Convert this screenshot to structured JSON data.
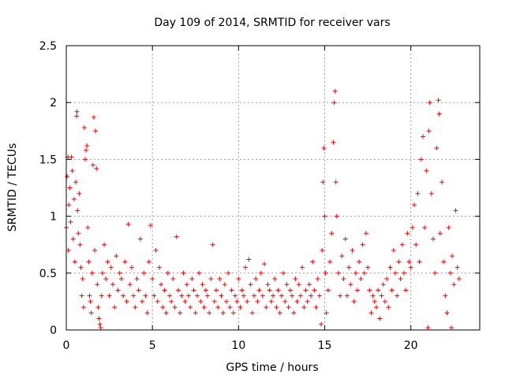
{
  "chart_data": {
    "type": "scatter",
    "title": "Day 109 of 2014, SRMTID for receiver vars",
    "xlabel": "GPS time / hours",
    "ylabel": "SRMTID / TECUs",
    "xlim": [
      0,
      24
    ],
    "ylim": [
      0,
      2.5
    ],
    "xticks": [
      0,
      5,
      10,
      15,
      20
    ],
    "xtick_labels": [
      "0",
      "5",
      "10",
      "15",
      "20"
    ],
    "yticks": [
      0,
      0.5,
      1,
      1.5,
      2,
      2.5
    ],
    "ytick_labels": [
      "0",
      "0.5",
      "1",
      "1.5",
      "2",
      "2.5"
    ],
    "grid": true,
    "marker": "+",
    "series": [
      {
        "name": "SRMTID",
        "color": "#ff0000",
        "points": [
          [
            0.0,
            0.9
          ],
          [
            0.05,
            1.35
          ],
          [
            0.1,
            1.52
          ],
          [
            0.12,
            0.7
          ],
          [
            0.15,
            1.1
          ],
          [
            0.2,
            1.25
          ],
          [
            0.25,
            0.95
          ],
          [
            0.3,
            1.52
          ],
          [
            0.35,
            1.4
          ],
          [
            0.4,
            0.8
          ],
          [
            0.45,
            1.15
          ],
          [
            0.5,
            0.6
          ],
          [
            0.55,
            1.3
          ],
          [
            0.6,
            1.88
          ],
          [
            0.62,
            1.92
          ],
          [
            0.65,
            1.05
          ],
          [
            0.7,
            0.85
          ],
          [
            0.75,
            1.2
          ],
          [
            0.8,
            0.75
          ],
          [
            0.85,
            0.55
          ],
          [
            0.9,
            0.3
          ],
          [
            0.95,
            0.45
          ],
          [
            1.0,
            0.2
          ],
          [
            1.05,
            1.78
          ],
          [
            1.1,
            1.5
          ],
          [
            1.15,
            1.58
          ],
          [
            1.2,
            1.62
          ],
          [
            1.25,
            0.9
          ],
          [
            1.3,
            0.6
          ],
          [
            1.35,
            0.3
          ],
          [
            1.4,
            0.25
          ],
          [
            1.45,
            0.15
          ],
          [
            1.5,
            0.5
          ],
          [
            1.55,
            1.45
          ],
          [
            1.6,
            1.87
          ],
          [
            1.65,
            0.7
          ],
          [
            1.7,
            1.75
          ],
          [
            1.75,
            1.42
          ],
          [
            1.8,
            0.4
          ],
          [
            1.85,
            0.2
          ],
          [
            1.9,
            0.1
          ],
          [
            1.95,
            0.05
          ],
          [
            2.0,
            0.02
          ],
          [
            2.05,
            0.3
          ],
          [
            2.1,
            0.5
          ],
          [
            2.2,
            0.75
          ],
          [
            2.3,
            0.45
          ],
          [
            2.4,
            0.6
          ],
          [
            2.5,
            0.3
          ],
          [
            2.6,
            0.55
          ],
          [
            2.7,
            0.4
          ],
          [
            2.8,
            0.2
          ],
          [
            2.9,
            0.65
          ],
          [
            3.0,
            0.35
          ],
          [
            3.1,
            0.5
          ],
          [
            3.2,
            0.45
          ],
          [
            3.3,
            0.3
          ],
          [
            3.4,
            0.6
          ],
          [
            3.5,
            0.25
          ],
          [
            3.6,
            0.93
          ],
          [
            3.7,
            0.4
          ],
          [
            3.8,
            0.55
          ],
          [
            3.9,
            0.3
          ],
          [
            4.0,
            0.2
          ],
          [
            4.1,
            0.45
          ],
          [
            4.2,
            0.35
          ],
          [
            4.3,
            0.8
          ],
          [
            4.4,
            0.25
          ],
          [
            4.5,
            0.5
          ],
          [
            4.6,
            0.3
          ],
          [
            4.7,
            0.15
          ],
          [
            4.8,
            0.6
          ],
          [
            4.9,
            0.92
          ],
          [
            5.0,
            0.45
          ],
          [
            5.1,
            0.3
          ],
          [
            5.2,
            0.7
          ],
          [
            5.3,
            0.25
          ],
          [
            5.4,
            0.55
          ],
          [
            5.5,
            0.4
          ],
          [
            5.6,
            0.2
          ],
          [
            5.7,
            0.35
          ],
          [
            5.8,
            0.15
          ],
          [
            5.9,
            0.5
          ],
          [
            6.0,
            0.3
          ],
          [
            6.1,
            0.25
          ],
          [
            6.2,
            0.45
          ],
          [
            6.3,
            0.2
          ],
          [
            6.4,
            0.82
          ],
          [
            6.5,
            0.35
          ],
          [
            6.6,
            0.15
          ],
          [
            6.7,
            0.3
          ],
          [
            6.8,
            0.5
          ],
          [
            6.9,
            0.25
          ],
          [
            7.0,
            0.4
          ],
          [
            7.1,
            0.3
          ],
          [
            7.2,
            0.2
          ],
          [
            7.3,
            0.45
          ],
          [
            7.4,
            0.35
          ],
          [
            7.5,
            0.15
          ],
          [
            7.6,
            0.3
          ],
          [
            7.7,
            0.5
          ],
          [
            7.8,
            0.25
          ],
          [
            7.9,
            0.4
          ],
          [
            8.0,
            0.2
          ],
          [
            8.1,
            0.35
          ],
          [
            8.2,
            0.3
          ],
          [
            8.3,
            0.15
          ],
          [
            8.4,
            0.45
          ],
          [
            8.5,
            0.75
          ],
          [
            8.6,
            0.25
          ],
          [
            8.7,
            0.35
          ],
          [
            8.8,
            0.2
          ],
          [
            8.9,
            0.45
          ],
          [
            9.0,
            0.3
          ],
          [
            9.1,
            0.15
          ],
          [
            9.2,
            0.4
          ],
          [
            9.3,
            0.25
          ],
          [
            9.4,
            0.5
          ],
          [
            9.5,
            0.2
          ],
          [
            9.6,
            0.35
          ],
          [
            9.7,
            0.15
          ],
          [
            9.8,
            0.3
          ],
          [
            9.9,
            0.25
          ],
          [
            10.0,
            0.45
          ],
          [
            10.1,
            0.2
          ],
          [
            10.2,
            0.35
          ],
          [
            10.3,
            0.3
          ],
          [
            10.4,
            0.55
          ],
          [
            10.5,
            0.25
          ],
          [
            10.6,
            0.62
          ],
          [
            10.7,
            0.4
          ],
          [
            10.8,
            0.15
          ],
          [
            10.9,
            0.3
          ],
          [
            11.0,
            0.45
          ],
          [
            11.1,
            0.25
          ],
          [
            11.2,
            0.35
          ],
          [
            11.3,
            0.5
          ],
          [
            11.4,
            0.3
          ],
          [
            11.5,
            0.58
          ],
          [
            11.6,
            0.2
          ],
          [
            11.7,
            0.4
          ],
          [
            11.8,
            0.35
          ],
          [
            11.9,
            0.25
          ],
          [
            12.0,
            0.3
          ],
          [
            12.1,
            0.45
          ],
          [
            12.2,
            0.2
          ],
          [
            12.3,
            0.35
          ],
          [
            12.4,
            0.15
          ],
          [
            12.5,
            0.3
          ],
          [
            12.6,
            0.5
          ],
          [
            12.7,
            0.25
          ],
          [
            12.8,
            0.4
          ],
          [
            12.9,
            0.2
          ],
          [
            13.0,
            0.35
          ],
          [
            13.1,
            0.3
          ],
          [
            13.2,
            0.15
          ],
          [
            13.3,
            0.45
          ],
          [
            13.4,
            0.25
          ],
          [
            13.5,
            0.4
          ],
          [
            13.6,
            0.3
          ],
          [
            13.7,
            0.55
          ],
          [
            13.8,
            0.2
          ],
          [
            13.9,
            0.35
          ],
          [
            14.0,
            0.25
          ],
          [
            14.1,
            0.4
          ],
          [
            14.2,
            0.3
          ],
          [
            14.3,
            0.6
          ],
          [
            14.4,
            0.35
          ],
          [
            14.5,
            0.2
          ],
          [
            14.6,
            0.45
          ],
          [
            14.7,
            0.3
          ],
          [
            14.8,
            0.05
          ],
          [
            14.85,
            0.7
          ],
          [
            14.9,
            1.3
          ],
          [
            14.95,
            1.6
          ],
          [
            15.0,
            1.0
          ],
          [
            15.05,
            0.5
          ],
          [
            15.1,
            0.15
          ],
          [
            15.2,
            0.35
          ],
          [
            15.3,
            0.6
          ],
          [
            15.4,
            0.85
          ],
          [
            15.5,
            1.65
          ],
          [
            15.55,
            2.0
          ],
          [
            15.6,
            2.1
          ],
          [
            15.65,
            1.3
          ],
          [
            15.7,
            1.0
          ],
          [
            15.8,
            0.5
          ],
          [
            15.9,
            0.3
          ],
          [
            16.0,
            0.65
          ],
          [
            16.1,
            0.45
          ],
          [
            16.2,
            0.8
          ],
          [
            16.3,
            0.3
          ],
          [
            16.4,
            0.55
          ],
          [
            16.5,
            0.4
          ],
          [
            16.6,
            0.7
          ],
          [
            16.7,
            0.25
          ],
          [
            16.8,
            0.5
          ],
          [
            16.9,
            0.35
          ],
          [
            17.0,
            0.6
          ],
          [
            17.1,
            0.45
          ],
          [
            17.2,
            0.75
          ],
          [
            17.3,
            0.5
          ],
          [
            17.4,
            0.85
          ],
          [
            17.5,
            0.55
          ],
          [
            17.6,
            0.35
          ],
          [
            17.7,
            0.15
          ],
          [
            17.8,
            0.3
          ],
          [
            17.9,
            0.25
          ],
          [
            18.0,
            0.2
          ],
          [
            18.1,
            0.35
          ],
          [
            18.2,
            0.1
          ],
          [
            18.3,
            0.3
          ],
          [
            18.4,
            0.4
          ],
          [
            18.5,
            0.25
          ],
          [
            18.6,
            0.45
          ],
          [
            18.7,
            0.2
          ],
          [
            18.8,
            0.55
          ],
          [
            18.9,
            0.35
          ],
          [
            19.0,
            0.7
          ],
          [
            19.1,
            0.5
          ],
          [
            19.2,
            0.3
          ],
          [
            19.3,
            0.6
          ],
          [
            19.4,
            0.45
          ],
          [
            19.5,
            0.75
          ],
          [
            19.6,
            0.5
          ],
          [
            19.7,
            0.35
          ],
          [
            19.8,
            0.85
          ],
          [
            19.9,
            0.6
          ],
          [
            20.0,
            0.55
          ],
          [
            20.1,
            0.9
          ],
          [
            20.2,
            1.1
          ],
          [
            20.3,
            0.75
          ],
          [
            20.4,
            1.2
          ],
          [
            20.5,
            0.6
          ],
          [
            20.6,
            1.5
          ],
          [
            20.7,
            1.7
          ],
          [
            20.8,
            0.9
          ],
          [
            20.9,
            1.4
          ],
          [
            21.0,
            0.02
          ],
          [
            21.05,
            1.75
          ],
          [
            21.1,
            2.0
          ],
          [
            21.2,
            1.2
          ],
          [
            21.3,
            0.8
          ],
          [
            21.4,
            0.5
          ],
          [
            21.5,
            1.6
          ],
          [
            21.6,
            2.02
          ],
          [
            21.65,
            1.9
          ],
          [
            21.7,
            0.85
          ],
          [
            21.8,
            1.3
          ],
          [
            21.9,
            0.6
          ],
          [
            22.0,
            0.3
          ],
          [
            22.1,
            0.15
          ],
          [
            22.2,
            0.9
          ],
          [
            22.3,
            0.5
          ],
          [
            22.35,
            0.02
          ],
          [
            22.4,
            0.65
          ],
          [
            22.5,
            0.4
          ],
          [
            22.6,
            1.05
          ],
          [
            22.7,
            0.55
          ],
          [
            22.8,
            0.45
          ]
        ]
      }
    ]
  }
}
